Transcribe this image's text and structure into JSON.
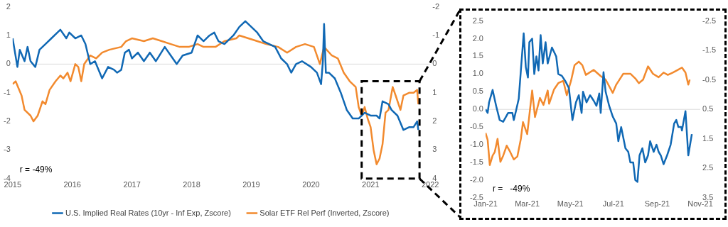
{
  "chart_data": [
    {
      "type": "line",
      "xlim": [
        2015,
        2022
      ],
      "xticks": [
        2015,
        2016,
        2017,
        2018,
        2019,
        2020,
        2021,
        2022
      ],
      "ylim": [
        -4,
        2
      ],
      "yticks": [
        -4,
        -3,
        -2,
        -1,
        0,
        1,
        2
      ],
      "y2lim": [
        4,
        -2
      ],
      "y2ticks": [
        -2,
        -1,
        0,
        1,
        2,
        3,
        4
      ],
      "grid": false,
      "legend": "bottom",
      "ref_lines": [
        {
          "axis": "y",
          "value": 0,
          "color": "#d9d9d9"
        }
      ],
      "annotations": [
        "r = -49%"
      ],
      "series": [
        {
          "name": "U.S. Implied Real Rates (10yr - Inf Exp, Zscore)",
          "color": "#1068b4",
          "x": [
            2015.0,
            2015.08,
            2015.12,
            2015.2,
            2015.25,
            2015.3,
            2015.38,
            2015.45,
            2015.55,
            2015.65,
            2015.75,
            2015.8,
            2015.9,
            2015.95,
            2016.05,
            2016.15,
            2016.22,
            2016.3,
            2016.38,
            2016.5,
            2016.6,
            2016.7,
            2016.75,
            2016.82,
            2016.88,
            2016.95,
            2017.0,
            2017.1,
            2017.2,
            2017.3,
            2017.4,
            2017.55,
            2017.65,
            2017.75,
            2017.85,
            2018.0,
            2018.1,
            2018.2,
            2018.3,
            2018.38,
            2018.45,
            2018.55,
            2018.7,
            2018.8,
            2018.9,
            2019.0,
            2019.1,
            2019.2,
            2019.3,
            2019.4,
            2019.45,
            2019.5,
            2019.6,
            2019.67,
            2019.75,
            2019.85,
            2020.0,
            2020.1,
            2020.17,
            2020.2,
            2020.22,
            2020.25,
            2020.3,
            2020.4,
            2020.5,
            2020.6,
            2020.7,
            2020.8,
            2020.9,
            2021.0,
            2021.1,
            2021.15,
            2021.2,
            2021.3,
            2021.35,
            2021.45,
            2021.55,
            2021.65,
            2021.72,
            2021.78,
            2021.8
          ],
          "values": [
            0.9,
            -0.1,
            0.5,
            0.1,
            0.6,
            0.1,
            -0.1,
            0.5,
            0.7,
            0.9,
            1.1,
            1.2,
            0.9,
            1.1,
            0.9,
            1.0,
            0.7,
            0.0,
            0.1,
            -0.5,
            -0.1,
            -0.2,
            -0.3,
            -0.2,
            0.4,
            0.5,
            0.2,
            0.4,
            0.1,
            0.4,
            0.1,
            0.6,
            0.3,
            0.0,
            0.3,
            0.4,
            1.0,
            0.8,
            1.0,
            1.1,
            0.8,
            0.7,
            1.0,
            1.3,
            1.5,
            1.3,
            1.1,
            0.8,
            0.7,
            0.6,
            0.4,
            0.2,
            0.0,
            -0.3,
            0.0,
            0.1,
            -0.1,
            -0.3,
            -0.7,
            0.1,
            1.4,
            -0.3,
            -0.3,
            -0.5,
            -1.0,
            -1.6,
            -1.9,
            -1.9,
            -1.7,
            -1.8,
            -1.8,
            -1.9,
            -1.3,
            -1.4,
            -1.6,
            -1.8,
            -2.3,
            -2.2,
            -2.2,
            -2.0,
            -2.3
          ]
        },
        {
          "name": "Solar ETF Rel Perf (Inverted, Zscore)",
          "color": "#f28a2e",
          "axis": "y2",
          "x": [
            2015.0,
            2015.05,
            2015.15,
            2015.2,
            2015.3,
            2015.35,
            2015.42,
            2015.5,
            2015.55,
            2015.62,
            2015.72,
            2015.8,
            2015.85,
            2015.92,
            2015.97,
            2016.05,
            2016.1,
            2016.15,
            2016.2,
            2016.3,
            2016.4,
            2016.5,
            2016.62,
            2016.82,
            2016.9,
            2017.0,
            2017.2,
            2017.35,
            2017.5,
            2017.65,
            2017.8,
            2017.95,
            2018.1,
            2018.2,
            2018.4,
            2018.55,
            2018.75,
            2018.8,
            2018.95,
            2019.1,
            2019.25,
            2019.45,
            2019.6,
            2019.75,
            2019.9,
            2020.05,
            2020.15,
            2020.22,
            2020.35,
            2020.45,
            2020.55,
            2020.65,
            2020.75,
            2020.8,
            2020.85,
            2020.9,
            2020.95,
            2021.0,
            2021.05,
            2021.1,
            2021.15,
            2021.2,
            2021.25,
            2021.3,
            2021.37,
            2021.42,
            2021.5,
            2021.55,
            2021.65,
            2021.72,
            2021.78,
            2021.8
          ],
          "values": [
            0.7,
            0.6,
            1.1,
            1.6,
            1.8,
            2.0,
            1.8,
            1.3,
            1.4,
            0.9,
            0.6,
            0.4,
            0.5,
            0.3,
            0.6,
            0.0,
            0.1,
            0.6,
            0.0,
            -0.3,
            -0.2,
            -0.4,
            -0.5,
            -0.6,
            -0.8,
            -0.9,
            -0.8,
            -0.9,
            -0.8,
            -0.7,
            -0.6,
            -0.6,
            -0.7,
            -0.6,
            -0.6,
            -0.8,
            -0.9,
            -1.0,
            -0.9,
            -0.8,
            -0.7,
            -0.6,
            -0.4,
            -0.6,
            -0.7,
            -0.6,
            0.0,
            -0.6,
            -0.3,
            -0.2,
            0.3,
            0.6,
            0.8,
            1.5,
            1.8,
            1.5,
            1.9,
            2.2,
            3.0,
            3.5,
            3.3,
            2.8,
            1.7,
            1.6,
            0.8,
            1.1,
            1.6,
            1.1,
            1.0,
            1.0,
            0.9,
            1.4
          ]
        }
      ]
    },
    {
      "type": "line",
      "xlim": [
        "2021-01-01",
        "2021-11-01"
      ],
      "xticks": [
        {
          "value": "2021-01-01",
          "label": "Jan-21"
        },
        {
          "value": "2021-03-01",
          "label": "Mar-21"
        },
        {
          "value": "2021-05-01",
          "label": "May-21"
        },
        {
          "value": "2021-07-01",
          "label": "Jul-21"
        },
        {
          "value": "2021-09-01",
          "label": "Sep-21"
        },
        {
          "value": "2021-11-01",
          "label": "Nov-21"
        }
      ],
      "ylim": [
        -2.5,
        2.5
      ],
      "yticks": [
        -2.5,
        {
          "value": -2,
          "label": "-2.0"
        },
        -1.5,
        {
          "value": -1,
          "label": "-1.0"
        },
        -0.5,
        {
          "value": 0,
          "label": "0.0"
        },
        0.5,
        {
          "value": 1,
          "label": "1.0"
        },
        1.5,
        {
          "value": 2,
          "label": "2.0"
        },
        2.5
      ],
      "y2lim": [
        3.5,
        -2.5
      ],
      "y2ticks": [
        -2.5,
        -1.5,
        -0.5,
        0.5,
        1.5,
        2.5,
        3.5
      ],
      "grid": false,
      "ref_lines": [
        {
          "axis": "y",
          "value": 0,
          "color": "#d9d9d9"
        }
      ],
      "annotations": [
        "r =   -49%"
      ],
      "series": [
        {
          "color": "#1068b4",
          "x": [
            "2021-01-01",
            "2021-01-04",
            "2021-01-06",
            "2021-01-11",
            "2021-01-16",
            "2021-01-21",
            "2021-01-26",
            "2021-02-02",
            "2021-02-08",
            "2021-02-10",
            "2021-02-13",
            "2021-02-17",
            "2021-02-20",
            "2021-02-24",
            "2021-02-27",
            "2021-03-02",
            "2021-03-04",
            "2021-03-08",
            "2021-03-11",
            "2021-03-14",
            "2021-03-17",
            "2021-03-20",
            "2021-03-23",
            "2021-03-27",
            "2021-03-30",
            "2021-04-05",
            "2021-04-11",
            "2021-04-14",
            "2021-04-19",
            "2021-04-24",
            "2021-04-29",
            "2021-05-04",
            "2021-05-09",
            "2021-05-13",
            "2021-05-17",
            "2021-05-19",
            "2021-05-24",
            "2021-05-29",
            "2021-06-03",
            "2021-06-07",
            "2021-06-11",
            "2021-06-13",
            "2021-06-17",
            "2021-06-20",
            "2021-06-25",
            "2021-06-30",
            "2021-07-05",
            "2021-07-08",
            "2021-07-12",
            "2021-07-16",
            "2021-07-18",
            "2021-07-22",
            "2021-07-25",
            "2021-07-29",
            "2021-08-01",
            "2021-08-04",
            "2021-08-07",
            "2021-08-11",
            "2021-08-15",
            "2021-08-19",
            "2021-08-22",
            "2021-08-27",
            "2021-08-31",
            "2021-09-03",
            "2021-09-06",
            "2021-09-10",
            "2021-09-15",
            "2021-09-20",
            "2021-09-25",
            "2021-09-28",
            "2021-10-01",
            "2021-10-05",
            "2021-10-06",
            "2021-10-11",
            "2021-10-15",
            "2021-10-20"
          ],
          "values": [
            0.0,
            -0.1,
            0.2,
            0.55,
            0.1,
            -0.3,
            -0.35,
            -0.1,
            -0.1,
            -0.3,
            -0.05,
            0.3,
            1.1,
            2.15,
            1.2,
            0.9,
            1.9,
            2.0,
            1.0,
            1.5,
            1.1,
            2.1,
            1.3,
            1.9,
            1.3,
            1.75,
            1.5,
            1.0,
            0.95,
            0.8,
            0.6,
            -0.3,
            0.2,
            0.4,
            -0.1,
            0.5,
            0.2,
            0.4,
            0.25,
            0.1,
            0.45,
            -0.1,
            1.05,
            0.5,
            0.1,
            -0.2,
            -0.4,
            -0.9,
            -0.5,
            -0.9,
            -1.1,
            -1.2,
            -1.5,
            -1.5,
            -2.0,
            -2.05,
            -1.3,
            -1.1,
            -1.5,
            -1.3,
            -0.9,
            -1.2,
            -1.0,
            -1.2,
            -1.3,
            -1.55,
            -1.3,
            -1.0,
            -0.4,
            -0.3,
            -0.5,
            -0.5,
            -0.6,
            -0.05,
            -1.3,
            -0.7
          ]
        },
        {
          "color": "#f28a2e",
          "axis": "y2",
          "x": [
            "2021-01-01",
            "2021-01-04",
            "2021-01-07",
            "2021-01-11",
            "2021-01-14",
            "2021-01-18",
            "2021-01-22",
            "2021-01-26",
            "2021-01-31",
            "2021-02-05",
            "2021-02-10",
            "2021-02-15",
            "2021-02-20",
            "2021-02-23",
            "2021-03-01",
            "2021-03-08",
            "2021-03-12",
            "2021-03-19",
            "2021-03-24",
            "2021-03-30",
            "2021-04-01",
            "2021-04-08",
            "2021-04-14",
            "2021-04-21",
            "2021-04-26",
            "2021-05-02",
            "2021-05-07",
            "2021-05-13",
            "2021-05-18",
            "2021-05-23",
            "2021-06-03",
            "2021-06-13",
            "2021-06-20",
            "2021-06-30",
            "2021-07-05",
            "2021-07-15",
            "2021-07-25",
            "2021-08-01",
            "2021-08-06",
            "2021-08-12",
            "2021-08-19",
            "2021-08-26",
            "2021-09-03",
            "2021-09-10",
            "2021-09-16",
            "2021-09-23",
            "2021-09-30",
            "2021-10-06",
            "2021-10-11",
            "2021-10-15",
            "2021-10-17"
          ],
          "values": [
            1.3,
            1.54,
            2.39,
            2.07,
            1.95,
            1.5,
            2.28,
            2.07,
            1.73,
            1.95,
            2.2,
            2.1,
            1.5,
            0.93,
            1.34,
            -0.14,
            0.76,
            0.11,
            0.35,
            -0.14,
            0.31,
            -0.18,
            -0.39,
            -0.47,
            0.02,
            -0.47,
            -1.0,
            -1.12,
            -1.0,
            -0.67,
            -0.84,
            -0.63,
            -0.51,
            -0.06,
            -0.34,
            -0.71,
            -0.71,
            -0.55,
            -0.39,
            -0.51,
            -0.96,
            -0.71,
            -0.59,
            -0.75,
            -0.67,
            -0.75,
            -0.84,
            -0.92,
            -0.75,
            -0.34,
            -0.51
          ]
        }
      ]
    }
  ]
}
